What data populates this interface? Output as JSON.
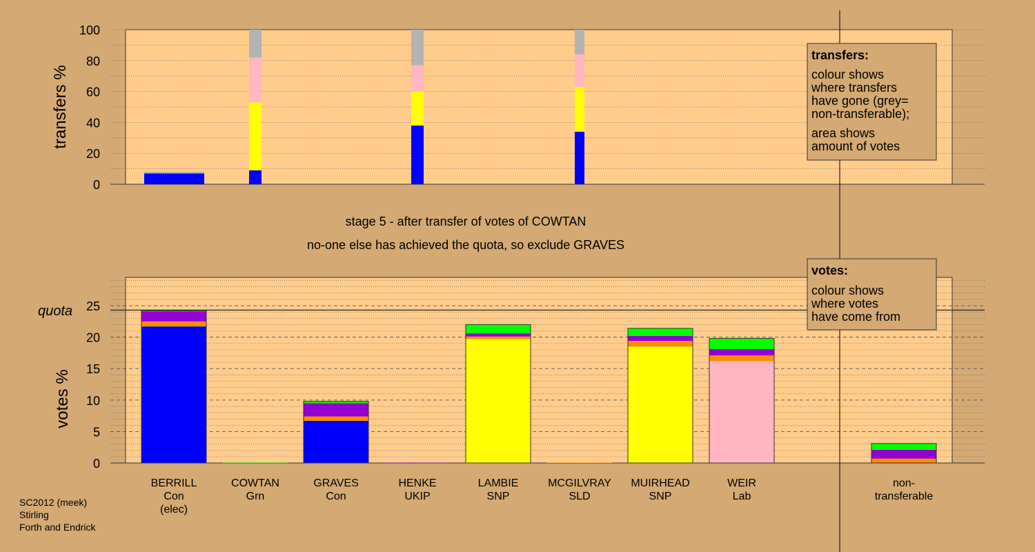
{
  "chart_data": [
    {
      "type": "bar",
      "name": "transfers",
      "ylabel": "transfers %",
      "ylim": [
        0,
        100
      ],
      "yticks": [
        "0",
        "20",
        "40",
        "60",
        "80",
        "100"
      ],
      "stacked": true,
      "bars": [
        {
          "candidate": "BERRILL",
          "segments": [
            {
              "color": "#0000ff",
              "value": 7
            },
            {
              "color": "#b3b3b3",
              "value": 1
            }
          ]
        },
        {
          "candidate": "COWTAN",
          "segments": [
            {
              "color": "#0000ff",
              "value": 9
            },
            {
              "color": "#ffff00",
              "value": 44
            },
            {
              "color": "#ffb6c1",
              "value": 29
            },
            {
              "color": "#b3b3b3",
              "value": 18
            }
          ]
        },
        {
          "candidate": "HENKE",
          "segments": [
            {
              "color": "#0000ff",
              "value": 38
            },
            {
              "color": "#ffff00",
              "value": 22
            },
            {
              "color": "#ffb6c1",
              "value": 17
            },
            {
              "color": "#b3b3b3",
              "value": 23
            }
          ]
        },
        {
          "candidate": "MCGILVRAY",
          "segments": [
            {
              "color": "#0000ff",
              "value": 34
            },
            {
              "color": "#ffff00",
              "value": 29
            },
            {
              "color": "#ffb6c1",
              "value": 21
            },
            {
              "color": "#b3b3b3",
              "value": 16
            }
          ]
        }
      ]
    },
    {
      "type": "bar",
      "name": "votes",
      "ylabel": "votes %",
      "ylim": [
        0,
        30
      ],
      "yticks": [
        "0",
        "5",
        "10",
        "15",
        "20",
        "25"
      ],
      "quota": 24.3,
      "quota_label": "quota",
      "stacked": true,
      "categories": [
        {
          "name": "BERRILL",
          "party": "Con",
          "note": "(elec)"
        },
        {
          "name": "COWTAN",
          "party": "Grn",
          "note": ""
        },
        {
          "name": "GRAVES",
          "party": "Con",
          "note": ""
        },
        {
          "name": "HENKE",
          "party": "UKIP",
          "note": ""
        },
        {
          "name": "LAMBIE",
          "party": "SNP",
          "note": ""
        },
        {
          "name": "MCGILVRAY",
          "party": "SLD",
          "note": ""
        },
        {
          "name": "MUIRHEAD",
          "party": "SNP",
          "note": ""
        },
        {
          "name": "WEIR",
          "party": "Lab",
          "note": ""
        },
        {
          "name": "non-",
          "party": "transferable",
          "note": ""
        }
      ],
      "bars": [
        {
          "candidate": "BERRILL",
          "segments": [
            {
              "color": "#0000ff",
              "value": 21.7
            },
            {
              "color": "#ff8c00",
              "value": 0.8
            },
            {
              "color": "#9400d3",
              "value": 1.6
            },
            {
              "color": "#00ff00",
              "value": 0.1
            }
          ]
        },
        {
          "candidate": "COWTAN",
          "segments": [
            {
              "color": "#00ff00",
              "value": 0.05
            }
          ]
        },
        {
          "candidate": "GRAVES",
          "segments": [
            {
              "color": "#0000ff",
              "value": 6.7
            },
            {
              "color": "#ff8c00",
              "value": 0.7
            },
            {
              "color": "#9400d3",
              "value": 2.1
            },
            {
              "color": "#00ff00",
              "value": 0.3
            }
          ]
        },
        {
          "candidate": "HENKE",
          "segments": [
            {
              "color": "#9400d3",
              "value": 0.05
            }
          ]
        },
        {
          "candidate": "LAMBIE",
          "segments": [
            {
              "color": "#ffff00",
              "value": 19.7
            },
            {
              "color": "#ff8c00",
              "value": 0.4
            },
            {
              "color": "#9400d3",
              "value": 0.5
            },
            {
              "color": "#00ff00",
              "value": 1.4
            }
          ]
        },
        {
          "candidate": "MCGILVRAY",
          "segments": [
            {
              "color": "#ff8c00",
              "value": 0.05
            }
          ]
        },
        {
          "candidate": "MUIRHEAD",
          "segments": [
            {
              "color": "#ffff00",
              "value": 18.5
            },
            {
              "color": "#ff8c00",
              "value": 0.9
            },
            {
              "color": "#9400d3",
              "value": 0.8
            },
            {
              "color": "#00ff00",
              "value": 1.2
            }
          ]
        },
        {
          "candidate": "WEIR",
          "segments": [
            {
              "color": "#ffb6c1",
              "value": 16.2
            },
            {
              "color": "#ff8c00",
              "value": 0.9
            },
            {
              "color": "#9400d3",
              "value": 1.0
            },
            {
              "color": "#00ff00",
              "value": 1.7
            }
          ]
        },
        {
          "candidate": "non-transferable",
          "segments": [
            {
              "color": "#ff8c00",
              "value": 0.7
            },
            {
              "color": "#9400d3",
              "value": 1.4
            },
            {
              "color": "#00ff00",
              "value": 1.0
            }
          ]
        }
      ]
    }
  ],
  "stage": {
    "line1": "stage 5 - after transfer of votes of COWTAN",
    "line2": "no-one else has achieved the quota, so exclude GRAVES"
  },
  "legend_transfers": {
    "title": "transfers:",
    "lines": [
      "colour shows",
      "where transfers",
      "have gone (grey=",
      "non-transferable);",
      "area shows",
      "amount of votes"
    ]
  },
  "legend_votes": {
    "title": "votes:",
    "lines": [
      "colour shows",
      "where votes",
      "have come from"
    ]
  },
  "footer": {
    "lines": [
      "SC2012 (meek)",
      "Stirling",
      "Forth and Endrick"
    ]
  }
}
